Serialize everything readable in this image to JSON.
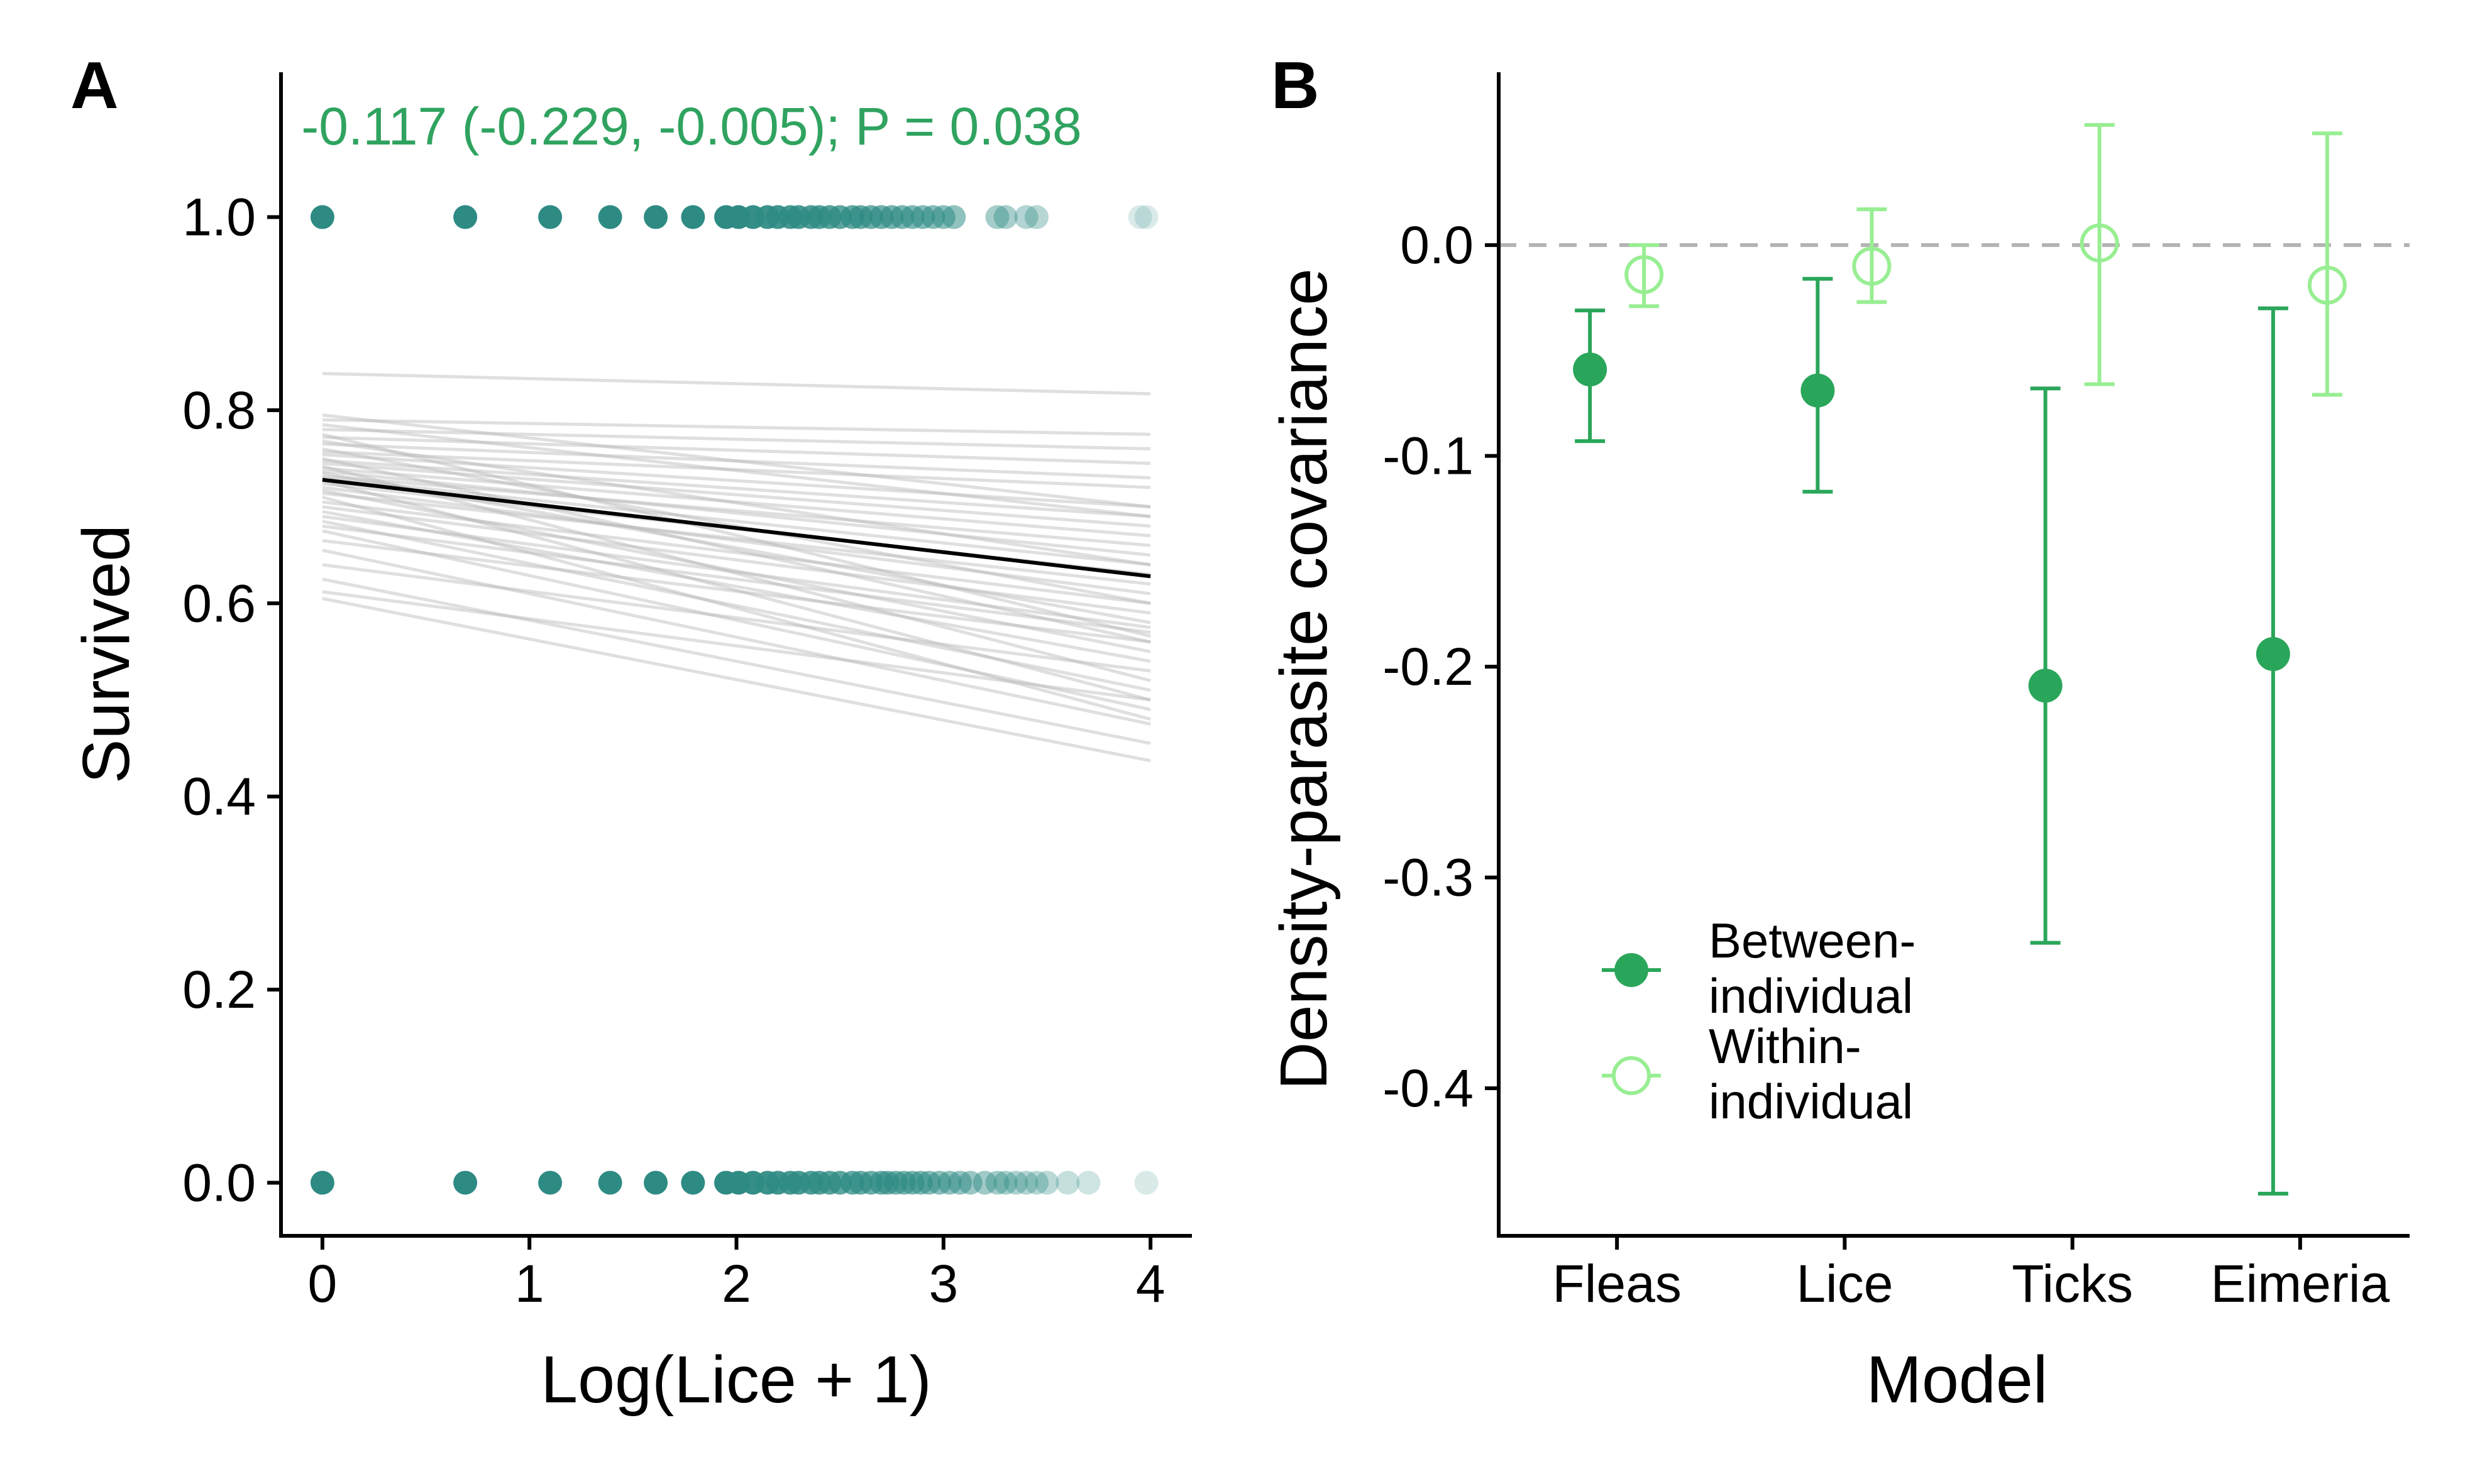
{
  "chart_data": [
    {
      "panel_label": "A",
      "type": "scatter",
      "xlabel": "Log(Lice + 1)",
      "ylabel": "Survived",
      "xlim": [
        -0.2,
        4.2
      ],
      "ylim": [
        -0.055,
        1.15
      ],
      "xticks": [
        "0",
        "1",
        "2",
        "3",
        "4"
      ],
      "yticks": [
        "0.0",
        "0.2",
        "0.4",
        "0.6",
        "0.8",
        "1.0"
      ],
      "annotation": "-0.117 (-0.229, -0.005); P = 0.038",
      "annotation_color": "#2fa35f",
      "point_color": "#2e8b84",
      "points_survived_1": [
        0,
        0.69,
        1.1,
        1.39,
        1.61,
        1.79,
        1.95,
        2.01,
        2.08,
        2.15,
        2.2,
        2.26,
        2.3,
        2.36,
        2.4,
        2.45,
        2.5,
        2.56,
        2.6,
        2.65,
        2.7,
        2.75,
        2.8,
        2.85,
        2.9,
        2.95,
        3.0,
        3.05,
        3.26,
        3.3,
        3.4,
        3.45,
        3.95,
        3.98
      ],
      "points_survived_0": [
        0,
        0.69,
        1.1,
        1.39,
        1.61,
        1.79,
        1.95,
        2.01,
        2.08,
        2.15,
        2.2,
        2.26,
        2.3,
        2.36,
        2.4,
        2.45,
        2.5,
        2.56,
        2.6,
        2.65,
        2.7,
        2.73,
        2.77,
        2.81,
        2.85,
        2.89,
        2.93,
        2.98,
        3.03,
        3.08,
        3.13,
        3.2,
        3.26,
        3.3,
        3.35,
        3.4,
        3.45,
        3.5,
        3.6,
        3.7,
        3.98
      ],
      "fit_line": {
        "x": [
          0,
          4
        ],
        "y": [
          0.728,
          0.628
        ],
        "color": "#000000"
      },
      "posterior_lines": [
        [
          0.838,
          0.817
        ],
        [
          0.795,
          0.7
        ],
        [
          0.79,
          0.775
        ],
        [
          0.785,
          0.69
        ],
        [
          0.78,
          0.76
        ],
        [
          0.775,
          0.566
        ],
        [
          0.772,
          0.745
        ],
        [
          0.768,
          0.64
        ],
        [
          0.765,
          0.73
        ],
        [
          0.76,
          0.6
        ],
        [
          0.757,
          0.72
        ],
        [
          0.754,
          0.7
        ],
        [
          0.75,
          0.56
        ],
        [
          0.748,
          0.69
        ],
        [
          0.745,
          0.68
        ],
        [
          0.742,
          0.52
        ],
        [
          0.74,
          0.67
        ],
        [
          0.737,
          0.65
        ],
        [
          0.735,
          0.58
        ],
        [
          0.732,
          0.66
        ],
        [
          0.73,
          0.64
        ],
        [
          0.727,
          0.5
        ],
        [
          0.724,
          0.63
        ],
        [
          0.72,
          0.61
        ],
        [
          0.717,
          0.55
        ],
        [
          0.714,
          0.62
        ],
        [
          0.71,
          0.48
        ],
        [
          0.705,
          0.6
        ],
        [
          0.7,
          0.59
        ],
        [
          0.695,
          0.54
        ],
        [
          0.69,
          0.575
        ],
        [
          0.685,
          0.51
        ],
        [
          0.68,
          0.57
        ],
        [
          0.675,
          0.49
        ],
        [
          0.665,
          0.56
        ],
        [
          0.655,
          0.475
        ],
        [
          0.64,
          0.53
        ],
        [
          0.625,
          0.455
        ],
        [
          0.612,
          0.5
        ],
        [
          0.605,
          0.437
        ]
      ],
      "posterior_color": "#b8b8b8"
    },
    {
      "panel_label": "B",
      "type": "scatter",
      "xlabel": "Model",
      "ylabel": "Density-parasite covariance",
      "categories": [
        "Fleas",
        "Lice",
        "Ticks",
        "Eimeria"
      ],
      "ylim": [
        -0.47,
        0.082
      ],
      "yticks": [
        0.0,
        -0.1,
        -0.2,
        -0.3,
        -0.4
      ],
      "ytick_labels": [
        "0.0",
        "-0.1",
        "-0.2",
        "-0.3",
        "-0.4"
      ],
      "reference_line": 0.0,
      "series": [
        {
          "name": "Between-individual",
          "legend_lines": [
            "Between-",
            "individual"
          ],
          "color": "#2aa65a",
          "marker": "filled",
          "estimate": [
            -0.059,
            -0.069,
            -0.209,
            -0.194
          ],
          "lower": [
            -0.093,
            -0.117,
            -0.331,
            -0.45
          ],
          "upper": [
            -0.031,
            -0.016,
            -0.068,
            -0.03
          ]
        },
        {
          "name": "Within-individual",
          "legend_lines": [
            "Within-",
            "individual"
          ],
          "color": "#98ee92",
          "marker": "open",
          "estimate": [
            -0.014,
            -0.01,
            0.001,
            -0.019
          ],
          "lower": [
            -0.029,
            -0.027,
            -0.066,
            -0.071
          ],
          "upper": [
            0.0,
            0.017,
            0.057,
            0.053
          ]
        }
      ],
      "legend": "bottom-left"
    }
  ]
}
